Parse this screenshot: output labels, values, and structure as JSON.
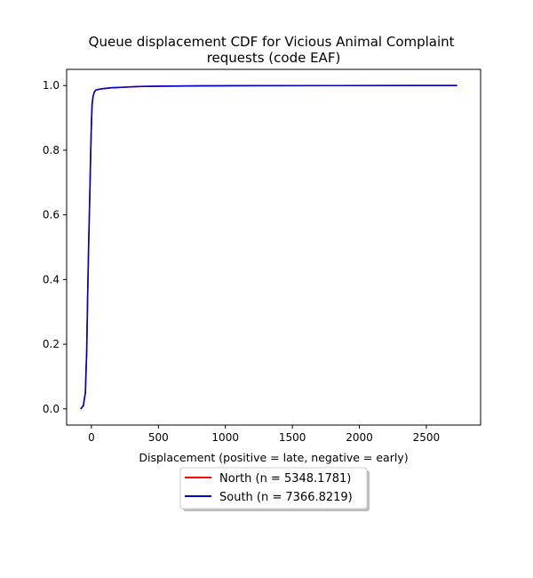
{
  "chart_data": {
    "type": "line",
    "title": "Queue displacement CDF for Vicious Animal Complaint\nrequests (code EAF)",
    "title_lines": [
      "Queue displacement CDF for Vicious Animal Complaint",
      "requests (code EAF)"
    ],
    "xlabel": "Displacement (positive = late, negative = early)",
    "ylabel": "",
    "xlim": [
      -185,
      2905
    ],
    "ylim": [
      -0.05,
      1.05
    ],
    "x_ticks": [
      0,
      500,
      1000,
      1500,
      2000,
      2500
    ],
    "y_ticks": [
      0.0,
      0.2,
      0.4,
      0.6,
      0.8,
      1.0
    ],
    "x_tick_labels": [
      "0",
      "500",
      "1000",
      "1500",
      "2000",
      "2500"
    ],
    "y_tick_labels": [
      "0.0",
      "0.2",
      "0.4",
      "0.6",
      "0.8",
      "1.0"
    ],
    "grid": false,
    "legend_position": "below",
    "series": [
      {
        "name": "North (n = 5348.1781)",
        "color": "#ff0000",
        "x": [
          -80,
          -60,
          -45,
          -35,
          -28,
          -20,
          -12,
          -5,
          0,
          5,
          12,
          20,
          30,
          50,
          80,
          150,
          250,
          350,
          500,
          800,
          1200,
          1800,
          2400,
          2730
        ],
        "y": [
          0.0,
          0.01,
          0.05,
          0.18,
          0.35,
          0.52,
          0.66,
          0.8,
          0.88,
          0.94,
          0.965,
          0.978,
          0.985,
          0.988,
          0.99,
          0.993,
          0.995,
          0.997,
          0.998,
          0.999,
          0.9995,
          0.9998,
          0.9999,
          1.0
        ]
      },
      {
        "name": "South (n = 7366.8219)",
        "color": "#0000cc",
        "x": [
          -80,
          -60,
          -45,
          -35,
          -28,
          -20,
          -12,
          -5,
          0,
          5,
          12,
          20,
          30,
          50,
          80,
          150,
          250,
          350,
          500,
          800,
          1200,
          1800,
          2400,
          2730
        ],
        "y": [
          0.0,
          0.01,
          0.05,
          0.18,
          0.35,
          0.52,
          0.66,
          0.8,
          0.88,
          0.94,
          0.965,
          0.978,
          0.985,
          0.988,
          0.99,
          0.993,
          0.995,
          0.997,
          0.998,
          0.999,
          0.9995,
          0.9998,
          0.9999,
          1.0
        ]
      }
    ]
  }
}
